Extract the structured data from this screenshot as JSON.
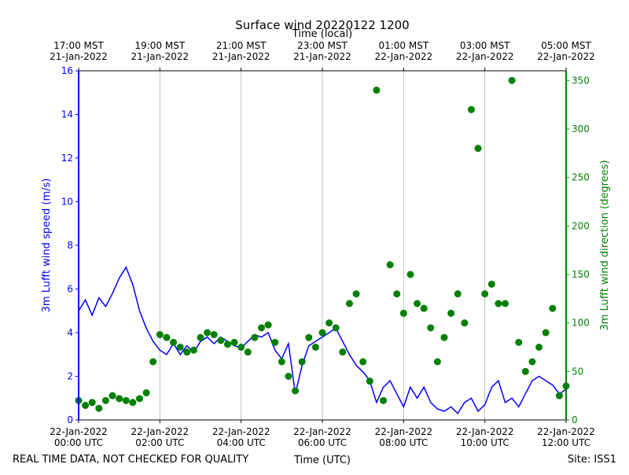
{
  "chart_data": {
    "type": "line",
    "title": "Surface wind 20220122 1200",
    "top_axis_label": "Time (local)",
    "x_label": "Time (UTC)",
    "y_label": "3m Lufft wind speed (m/s)",
    "y2_label": "3m Lufft wind direction (degrees)",
    "footer_left": "REAL TIME DATA, NOT CHECKED FOR QUALITY",
    "footer_right": "Site: ISS1",
    "xlim": [
      "2022-01-22T00:00",
      "2022-01-22T12:00"
    ],
    "xticks": [
      {
        "value": "2022-01-22T00:00",
        "label": "22-Jan-2022\n00:00 UTC"
      },
      {
        "value": "2022-01-22T02:00",
        "label": "22-Jan-2022\n02:00 UTC"
      },
      {
        "value": "2022-01-22T04:00",
        "label": "22-Jan-2022\n04:00 UTC"
      },
      {
        "value": "2022-01-22T06:00",
        "label": "22-Jan-2022\n06:00 UTC"
      },
      {
        "value": "2022-01-22T08:00",
        "label": "22-Jan-2022\n08:00 UTC"
      },
      {
        "value": "2022-01-22T10:00",
        "label": "22-Jan-2022\n10:00 UTC"
      },
      {
        "value": "2022-01-22T12:00",
        "label": "22-Jan-2022\n12:00 UTC"
      }
    ],
    "top_xticks": [
      {
        "value": "2022-01-22T00:00",
        "label": "17:00 MST\n21-Jan-2022"
      },
      {
        "value": "2022-01-22T02:00",
        "label": "19:00 MST\n21-Jan-2022"
      },
      {
        "value": "2022-01-22T04:00",
        "label": "21:00 MST\n21-Jan-2022"
      },
      {
        "value": "2022-01-22T06:00",
        "label": "23:00 MST\n21-Jan-2022"
      },
      {
        "value": "2022-01-22T08:00",
        "label": "01:00 MST\n22-Jan-2022"
      },
      {
        "value": "2022-01-22T10:00",
        "label": "03:00 MST\n22-Jan-2022"
      },
      {
        "value": "2022-01-22T12:00",
        "label": "05:00 MST\n22-Jan-2022"
      }
    ],
    "ylim": [
      0,
      16
    ],
    "yticks": [
      0,
      2,
      4,
      6,
      8,
      10,
      12,
      14,
      16
    ],
    "y2lim": [
      0,
      360
    ],
    "y2ticks": [
      0,
      50,
      100,
      150,
      200,
      250,
      300,
      350
    ],
    "grid": "x",
    "x": [
      "2022-01-22T00:00",
      "2022-01-22T00:10",
      "2022-01-22T00:20",
      "2022-01-22T00:30",
      "2022-01-22T00:40",
      "2022-01-22T00:50",
      "2022-01-22T01:00",
      "2022-01-22T01:10",
      "2022-01-22T01:20",
      "2022-01-22T01:30",
      "2022-01-22T01:40",
      "2022-01-22T01:50",
      "2022-01-22T02:00",
      "2022-01-22T02:10",
      "2022-01-22T02:20",
      "2022-01-22T02:30",
      "2022-01-22T02:40",
      "2022-01-22T02:50",
      "2022-01-22T03:00",
      "2022-01-22T03:10",
      "2022-01-22T03:20",
      "2022-01-22T03:30",
      "2022-01-22T03:40",
      "2022-01-22T03:50",
      "2022-01-22T04:00",
      "2022-01-22T04:10",
      "2022-01-22T04:20",
      "2022-01-22T04:30",
      "2022-01-22T04:40",
      "2022-01-22T04:50",
      "2022-01-22T05:00",
      "2022-01-22T05:10",
      "2022-01-22T05:20",
      "2022-01-22T05:30",
      "2022-01-22T05:40",
      "2022-01-22T05:50",
      "2022-01-22T06:00",
      "2022-01-22T06:10",
      "2022-01-22T06:20",
      "2022-01-22T06:30",
      "2022-01-22T06:40",
      "2022-01-22T06:50",
      "2022-01-22T07:00",
      "2022-01-22T07:10",
      "2022-01-22T07:20",
      "2022-01-22T07:30",
      "2022-01-22T07:40",
      "2022-01-22T07:50",
      "2022-01-22T08:00",
      "2022-01-22T08:10",
      "2022-01-22T08:20",
      "2022-01-22T08:30",
      "2022-01-22T08:40",
      "2022-01-22T08:50",
      "2022-01-22T09:00",
      "2022-01-22T09:10",
      "2022-01-22T09:20",
      "2022-01-22T09:30",
      "2022-01-22T09:40",
      "2022-01-22T09:50",
      "2022-01-22T10:00",
      "2022-01-22T10:10",
      "2022-01-22T10:20",
      "2022-01-22T10:30",
      "2022-01-22T10:40",
      "2022-01-22T10:50",
      "2022-01-22T11:00",
      "2022-01-22T11:10",
      "2022-01-22T11:20",
      "2022-01-22T11:30",
      "2022-01-22T11:40",
      "2022-01-22T11:50",
      "2022-01-22T12:00"
    ],
    "series": [
      {
        "name": "3m Lufft wind speed",
        "color": "#0000ff",
        "style": "line",
        "values": [
          5.0,
          5.5,
          4.8,
          5.6,
          5.2,
          5.8,
          6.5,
          7.0,
          6.2,
          5.0,
          4.2,
          3.6,
          3.2,
          3.0,
          3.5,
          3.0,
          3.4,
          3.1,
          3.6,
          3.8,
          3.5,
          3.8,
          3.6,
          3.4,
          3.3,
          3.6,
          3.9,
          3.8,
          4.0,
          3.2,
          2.8,
          3.5,
          1.2,
          2.5,
          3.4,
          3.6,
          3.8,
          4.0,
          4.2,
          3.6,
          3.0,
          2.5,
          2.2,
          1.8,
          0.8,
          1.5,
          1.8,
          1.2,
          0.6,
          1.5,
          1.0,
          1.5,
          0.8,
          0.5,
          0.4,
          0.6,
          0.3,
          0.8,
          1.0,
          0.4,
          0.7,
          1.5,
          1.8,
          0.8,
          1.0,
          0.6,
          1.2,
          1.8,
          2.0,
          1.8,
          1.6,
          1.2,
          1.4
        ]
      },
      {
        "name": "3m Lufft wind direction",
        "color": "#008000",
        "style": "markers",
        "axis": "y2",
        "values": [
          20,
          15,
          18,
          12,
          20,
          25,
          22,
          20,
          18,
          22,
          28,
          60,
          88,
          85,
          80,
          75,
          70,
          72,
          85,
          90,
          88,
          82,
          78,
          80,
          75,
          70,
          85,
          95,
          98,
          80,
          60,
          45,
          30,
          60,
          85,
          75,
          90,
          100,
          95,
          70,
          120,
          130,
          60,
          40,
          340,
          20,
          160,
          130,
          110,
          150,
          120,
          115,
          95,
          60,
          85,
          110,
          130,
          100,
          320,
          280,
          130,
          140,
          120,
          120,
          350,
          80,
          50,
          60,
          75,
          90,
          115,
          25,
          35
        ]
      }
    ]
  }
}
